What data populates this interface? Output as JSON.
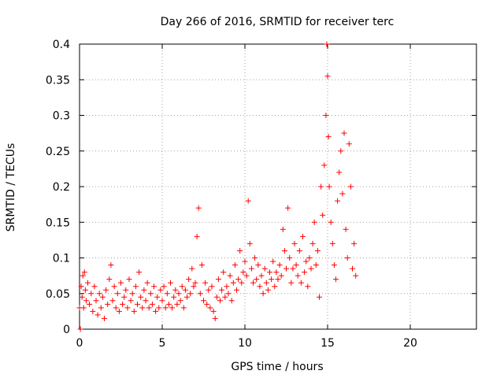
{
  "chart_data": {
    "type": "scatter",
    "title": "Day 266 of 2016, SRMTID for receiver terc",
    "xlabel": "GPS time / hours",
    "ylabel": "SRMTID / TECUs",
    "xlim": [
      0,
      24
    ],
    "ylim": [
      0,
      0.4
    ],
    "xticks": [
      0,
      5,
      10,
      15,
      20
    ],
    "yticks": [
      0,
      0.05,
      0.1,
      0.15,
      0.2,
      0.25,
      0.3,
      0.35,
      0.4
    ],
    "xtick_labels": [
      "0",
      "5",
      "10",
      "15",
      "20"
    ],
    "ytick_labels": [
      "0",
      "0.05",
      "0.1",
      "0.15",
      "0.2",
      "0.25",
      "0.3",
      "0.35",
      "0.4"
    ],
    "grid": true,
    "marker": "+",
    "color": "#ff0000",
    "points": [
      [
        0.0,
        0.03
      ],
      [
        0.05,
        0.0
      ],
      [
        0.1,
        0.06
      ],
      [
        0.15,
        0.045
      ],
      [
        0.2,
        0.075
      ],
      [
        0.25,
        0.03
      ],
      [
        0.3,
        0.08
      ],
      [
        0.35,
        0.055
      ],
      [
        0.4,
        0.04
      ],
      [
        0.5,
        0.065
      ],
      [
        0.6,
        0.035
      ],
      [
        0.7,
        0.05
      ],
      [
        0.8,
        0.025
      ],
      [
        0.9,
        0.06
      ],
      [
        1.0,
        0.04
      ],
      [
        1.1,
        0.02
      ],
      [
        1.2,
        0.05
      ],
      [
        1.3,
        0.03
      ],
      [
        1.4,
        0.045
      ],
      [
        1.5,
        0.015
      ],
      [
        1.6,
        0.055
      ],
      [
        1.7,
        0.035
      ],
      [
        1.8,
        0.07
      ],
      [
        1.9,
        0.09
      ],
      [
        2.0,
        0.04
      ],
      [
        2.1,
        0.06
      ],
      [
        2.2,
        0.03
      ],
      [
        2.3,
        0.05
      ],
      [
        2.4,
        0.025
      ],
      [
        2.5,
        0.065
      ],
      [
        2.6,
        0.035
      ],
      [
        2.7,
        0.045
      ],
      [
        2.8,
        0.055
      ],
      [
        2.9,
        0.03
      ],
      [
        3.0,
        0.07
      ],
      [
        3.1,
        0.04
      ],
      [
        3.2,
        0.05
      ],
      [
        3.3,
        0.025
      ],
      [
        3.4,
        0.06
      ],
      [
        3.5,
        0.035
      ],
      [
        3.6,
        0.08
      ],
      [
        3.7,
        0.045
      ],
      [
        3.8,
        0.03
      ],
      [
        3.9,
        0.055
      ],
      [
        4.0,
        0.04
      ],
      [
        4.1,
        0.065
      ],
      [
        4.2,
        0.03
      ],
      [
        4.3,
        0.05
      ],
      [
        4.4,
        0.035
      ],
      [
        4.5,
        0.06
      ],
      [
        4.6,
        0.025
      ],
      [
        4.7,
        0.045
      ],
      [
        4.8,
        0.03
      ],
      [
        4.9,
        0.055
      ],
      [
        5.0,
        0.04
      ],
      [
        5.1,
        0.06
      ],
      [
        5.2,
        0.03
      ],
      [
        5.3,
        0.05
      ],
      [
        5.4,
        0.035
      ],
      [
        5.5,
        0.065
      ],
      [
        5.6,
        0.03
      ],
      [
        5.7,
        0.045
      ],
      [
        5.8,
        0.055
      ],
      [
        5.9,
        0.035
      ],
      [
        6.0,
        0.05
      ],
      [
        6.1,
        0.04
      ],
      [
        6.2,
        0.06
      ],
      [
        6.3,
        0.03
      ],
      [
        6.4,
        0.055
      ],
      [
        6.5,
        0.045
      ],
      [
        6.6,
        0.07
      ],
      [
        6.7,
        0.05
      ],
      [
        6.8,
        0.085
      ],
      [
        6.9,
        0.06
      ],
      [
        7.0,
        0.065
      ],
      [
        7.1,
        0.13
      ],
      [
        7.2,
        0.17
      ],
      [
        7.3,
        0.05
      ],
      [
        7.4,
        0.09
      ],
      [
        7.5,
        0.04
      ],
      [
        7.6,
        0.065
      ],
      [
        7.7,
        0.035
      ],
      [
        7.8,
        0.055
      ],
      [
        7.9,
        0.03
      ],
      [
        8.0,
        0.06
      ],
      [
        8.1,
        0.025
      ],
      [
        8.2,
        0.015
      ],
      [
        8.3,
        0.045
      ],
      [
        8.4,
        0.07
      ],
      [
        8.5,
        0.04
      ],
      [
        8.6,
        0.055
      ],
      [
        8.7,
        0.08
      ],
      [
        8.8,
        0.045
      ],
      [
        8.9,
        0.06
      ],
      [
        9.0,
        0.05
      ],
      [
        9.1,
        0.075
      ],
      [
        9.2,
        0.04
      ],
      [
        9.3,
        0.065
      ],
      [
        9.4,
        0.09
      ],
      [
        9.5,
        0.055
      ],
      [
        9.6,
        0.07
      ],
      [
        9.7,
        0.11
      ],
      [
        9.8,
        0.065
      ],
      [
        9.9,
        0.08
      ],
      [
        10.0,
        0.095
      ],
      [
        10.1,
        0.075
      ],
      [
        10.2,
        0.18
      ],
      [
        10.3,
        0.12
      ],
      [
        10.4,
        0.085
      ],
      [
        10.5,
        0.065
      ],
      [
        10.6,
        0.1
      ],
      [
        10.7,
        0.07
      ],
      [
        10.8,
        0.09
      ],
      [
        10.9,
        0.06
      ],
      [
        11.0,
        0.075
      ],
      [
        11.1,
        0.05
      ],
      [
        11.2,
        0.085
      ],
      [
        11.3,
        0.065
      ],
      [
        11.4,
        0.055
      ],
      [
        11.5,
        0.08
      ],
      [
        11.6,
        0.07
      ],
      [
        11.7,
        0.095
      ],
      [
        11.8,
        0.06
      ],
      [
        11.9,
        0.08
      ],
      [
        12.0,
        0.07
      ],
      [
        12.1,
        0.09
      ],
      [
        12.2,
        0.075
      ],
      [
        12.3,
        0.14
      ],
      [
        12.4,
        0.11
      ],
      [
        12.5,
        0.085
      ],
      [
        12.6,
        0.17
      ],
      [
        12.7,
        0.1
      ],
      [
        12.8,
        0.065
      ],
      [
        12.9,
        0.085
      ],
      [
        13.0,
        0.12
      ],
      [
        13.1,
        0.09
      ],
      [
        13.2,
        0.075
      ],
      [
        13.3,
        0.11
      ],
      [
        13.4,
        0.065
      ],
      [
        13.5,
        0.13
      ],
      [
        13.6,
        0.08
      ],
      [
        13.7,
        0.095
      ],
      [
        13.8,
        0.06
      ],
      [
        13.9,
        0.1
      ],
      [
        14.0,
        0.085
      ],
      [
        14.1,
        0.12
      ],
      [
        14.2,
        0.15
      ],
      [
        14.3,
        0.09
      ],
      [
        14.4,
        0.11
      ],
      [
        14.5,
        0.045
      ],
      [
        14.6,
        0.2
      ],
      [
        14.7,
        0.16
      ],
      [
        14.8,
        0.23
      ],
      [
        14.9,
        0.3
      ],
      [
        14.95,
        0.4
      ],
      [
        15.0,
        0.355
      ],
      [
        15.05,
        0.27
      ],
      [
        15.1,
        0.2
      ],
      [
        15.2,
        0.15
      ],
      [
        15.3,
        0.12
      ],
      [
        15.4,
        0.09
      ],
      [
        15.5,
        0.07
      ],
      [
        15.6,
        0.18
      ],
      [
        15.7,
        0.22
      ],
      [
        15.8,
        0.25
      ],
      [
        15.9,
        0.19
      ],
      [
        16.0,
        0.275
      ],
      [
        16.1,
        0.14
      ],
      [
        16.2,
        0.1
      ],
      [
        16.3,
        0.26
      ],
      [
        16.4,
        0.2
      ],
      [
        16.5,
        0.085
      ],
      [
        16.6,
        0.12
      ],
      [
        16.7,
        0.075
      ]
    ]
  }
}
